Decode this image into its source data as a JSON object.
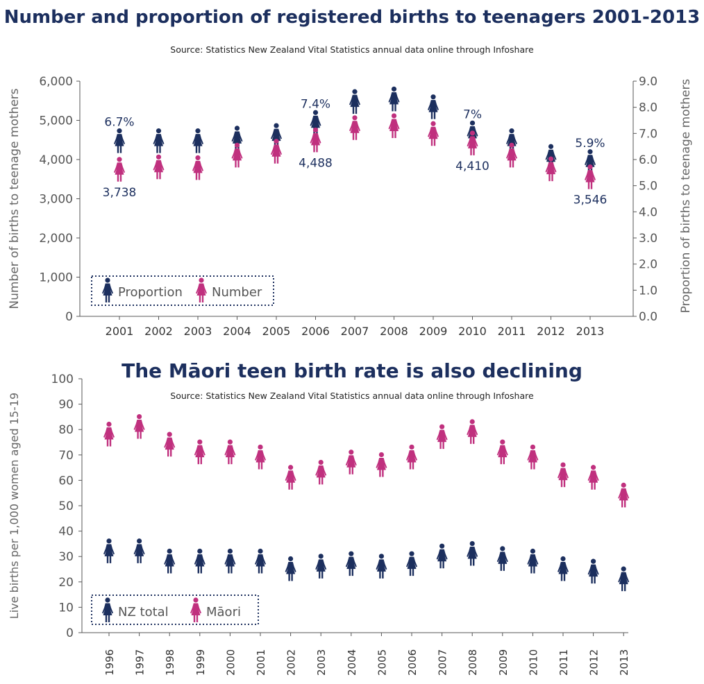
{
  "colors": {
    "proportion": "#1c2f5e",
    "number": "#c0307e",
    "axis": "#555555",
    "text": "#1c2f5e"
  },
  "top": {
    "title": "Number and proportion of registered births to teenagers 2001-2013",
    "source": "Source: Statistics New Zealand Vital Statistics annual data online through Infoshare"
  },
  "bottom": {
    "title": "The Māori teen birth rate is also declining",
    "source": "Source: Statistics New Zealand Vital Statistics annual data online through Infoshare"
  },
  "chart_data": [
    {
      "type": "scatter",
      "title": "Number and proportion of registered births to teenagers 2001-2013",
      "x": [
        "2001",
        "2002",
        "2003",
        "2004",
        "2005",
        "2006",
        "2007",
        "2008",
        "2009",
        "2010",
        "2011",
        "2012",
        "2013"
      ],
      "ylabel": "Number of births to teenage mothers",
      "y2label": "Proportion of births to teenage mothers",
      "ylim": [
        0,
        6000
      ],
      "y2lim": [
        0,
        9.0
      ],
      "y_ticks": [
        "0",
        "1,000",
        "2,000",
        "3,000",
        "4,000",
        "5,000",
        "6,000"
      ],
      "y2_ticks": [
        "0.0",
        "1.0",
        "2.0",
        "3.0",
        "4.0",
        "5.0",
        "6.0",
        "7.0",
        "8.0",
        "9.0"
      ],
      "legend_position": "bottom-left",
      "series": [
        {
          "name": "Proportion",
          "axis": "right",
          "values": [
            6.7,
            6.7,
            6.7,
            6.8,
            6.9,
            7.4,
            8.2,
            8.3,
            8.0,
            7.0,
            6.7,
            6.1,
            5.9
          ],
          "labels": {
            "0": "6.7%",
            "5": "7.4%",
            "9": "7%",
            "12": "5.9%"
          }
        },
        {
          "name": "Number",
          "axis": "left",
          "values": [
            3738,
            3800,
            3780,
            4100,
            4200,
            4488,
            4800,
            4850,
            4650,
            4410,
            4100,
            3750,
            3546
          ],
          "labels": {
            "0": "3,738",
            "5": "4,488",
            "9": "4,410",
            "12": "3,546"
          }
        }
      ]
    },
    {
      "type": "scatter",
      "title": "The Māori teen birth rate is also declining",
      "x": [
        "1996",
        "1997",
        "1998",
        "1999",
        "2000",
        "2001",
        "2002",
        "2003",
        "2004",
        "2005",
        "2006",
        "2007",
        "2008",
        "2009",
        "2010",
        "2011",
        "2012",
        "2013"
      ],
      "ylabel": "Live births per 1,000 women aged 15-19",
      "ylim": [
        0,
        100
      ],
      "y_ticks": [
        "0",
        "10",
        "20",
        "30",
        "40",
        "50",
        "60",
        "70",
        "80",
        "90",
        "100"
      ],
      "legend_position": "bottom-left",
      "series": [
        {
          "name": "NZ total",
          "values": [
            32,
            32,
            28,
            28,
            28,
            28,
            25,
            26,
            27,
            26,
            27,
            30,
            31,
            29,
            28,
            25,
            24,
            21
          ]
        },
        {
          "name": "Māori",
          "values": [
            78,
            81,
            74,
            71,
            71,
            69,
            61,
            63,
            67,
            66,
            69,
            77,
            79,
            71,
            69,
            62,
            61,
            54
          ]
        }
      ]
    }
  ]
}
